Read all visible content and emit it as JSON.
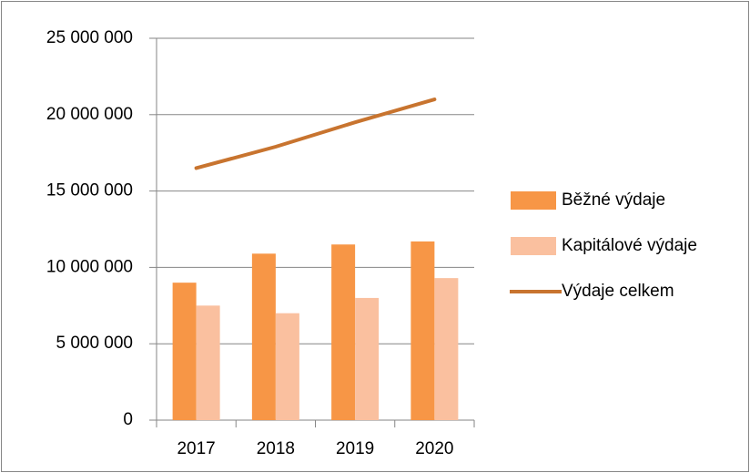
{
  "chart_data": {
    "type": "bar",
    "categories": [
      "2017",
      "2018",
      "2019",
      "2020"
    ],
    "series": [
      {
        "name": "Běžné výdaje",
        "color": "#f79646",
        "values": [
          9000000,
          10900000,
          11500000,
          11700000
        ]
      },
      {
        "name": "Kapitálové výdaje",
        "color": "#fac09f",
        "values": [
          7500000,
          7000000,
          8000000,
          9300000
        ]
      },
      {
        "name": "Výdaje celkem",
        "color": "#c8742f",
        "type": "line",
        "values": [
          16500000,
          17900000,
          19500000,
          21000000
        ]
      }
    ],
    "ylim": [
      0,
      25000000
    ],
    "yticks": [
      0,
      {
        "value": 5000000,
        "label": "5 000 000"
      },
      {
        "value": 10000000,
        "label": "10 000 000"
      },
      {
        "value": 15000000,
        "label": "15 000 000"
      },
      {
        "value": 20000000,
        "label": "20 000 000"
      },
      {
        "value": 25000000,
        "label": "25 000 000"
      }
    ],
    "grid": true,
    "legend": "right"
  }
}
